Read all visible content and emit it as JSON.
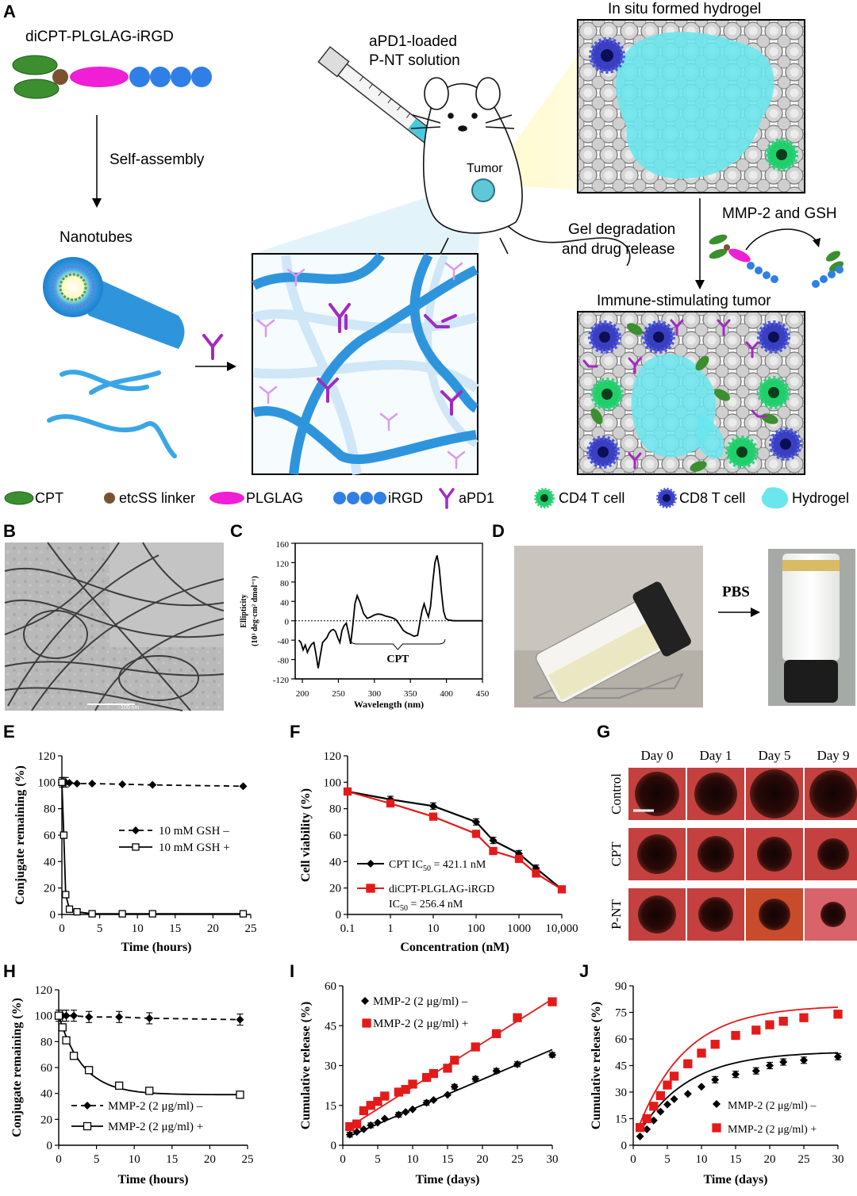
{
  "panel_letters": {
    "A": "A",
    "B": "B",
    "C": "C",
    "D": "D",
    "E": "E",
    "F": "F",
    "G": "G",
    "H": "H",
    "I": "I",
    "J": "J"
  },
  "schematic": {
    "conjugate_title": "diCPT-PLGLAG-iRGD",
    "self_assembly": "Self-assembly",
    "nanotubes": "Nanotubes",
    "syringe_line1": "aPD1-loaded",
    "syringe_line2": "P-NT solution",
    "tumor": "Tumor",
    "hydrogel_title": "In situ formed hydrogel",
    "degradation_line1": "Gel degradation",
    "degradation_line2": "and drug release",
    "enzyme_label": "MMP-2 and GSH",
    "immune_title": "Immune-stimulating tumor"
  },
  "legend": {
    "cpt": "CPT",
    "linker": "etcSS linker",
    "plglag": "PLGLAG",
    "irgd": "iRGD",
    "apd1": "aPD1",
    "cd4": "CD4 T cell",
    "cd8": "CD8 T cell",
    "hydrogel": "Hydrogel"
  },
  "colors": {
    "cpt_green": "#3c8f2f",
    "linker_brown": "#7a5230",
    "plglag_magenta": "#ee1fd4",
    "irgd_blue": "#2f7fe6",
    "nanotube_blue": "#2e95dd",
    "apd1_purple": "#a02bbf",
    "cd4_green": "#1fcf6a",
    "cd8_blue": "#3a3fc2",
    "hydrogel_cyan": "#69e6ee",
    "series_red": "#e41a1a"
  },
  "panel_b": {
    "scale_label": "100 nm"
  },
  "panel_d": {
    "arrow_label": "PBS"
  },
  "panel_g": {
    "columns": [
      "Day 0",
      "Day 1",
      "Day 5",
      "Day 9"
    ],
    "rows": [
      "Control",
      "CPT",
      "P-NT"
    ]
  },
  "chart_data": [
    {
      "id": "C",
      "type": "line",
      "xlabel": "Wavelength (nm)",
      "ylabel_line1": "Ellipticity",
      "ylabel_line2": "(10³ deg·cm² dmol⁻¹)",
      "xlim": [
        190,
        450
      ],
      "ylim": [
        -120,
        160
      ],
      "xticks": [
        200,
        250,
        300,
        350,
        400,
        450
      ],
      "yticks": [
        -120,
        -80,
        -40,
        0,
        40,
        80,
        120,
        160
      ],
      "annotation": "CPT",
      "series": [
        {
          "x": [
            195,
            198,
            201,
            204,
            207,
            210,
            213,
            216,
            219,
            222,
            225,
            228,
            231,
            234,
            237,
            240,
            243,
            246,
            249,
            252,
            255,
            258,
            261,
            264,
            267,
            270,
            273,
            276,
            280,
            285,
            290,
            295,
            300,
            305,
            310,
            315,
            320,
            325,
            330,
            335,
            340,
            345,
            350,
            355,
            360,
            363,
            366,
            369,
            372,
            375,
            378,
            381,
            384,
            387,
            390,
            393,
            396,
            399,
            402,
            410,
            420,
            430,
            440,
            450
          ],
          "y": [
            -40,
            -45,
            -60,
            -50,
            -65,
            -55,
            -48,
            -45,
            -70,
            -98,
            -70,
            -45,
            -40,
            -35,
            -25,
            -20,
            -18,
            -22,
            -35,
            -45,
            -20,
            -10,
            -5,
            -25,
            -48,
            -10,
            35,
            52,
            38,
            15,
            5,
            8,
            12,
            14,
            13,
            10,
            8,
            6,
            2,
            -8,
            -20,
            -25,
            -28,
            -32,
            -30,
            -5,
            20,
            35,
            20,
            8,
            30,
            80,
            120,
            135,
            110,
            60,
            20,
            5,
            2,
            0,
            0,
            0,
            0,
            0
          ]
        }
      ]
    },
    {
      "id": "E",
      "type": "line",
      "xlabel": "Time (hours)",
      "ylabel": "Conjugate remaining (%)",
      "xlim": [
        0,
        25
      ],
      "ylim": [
        0,
        120
      ],
      "xticks": [
        0,
        5,
        10,
        15,
        20,
        25
      ],
      "yticks": [
        0,
        20,
        40,
        60,
        80,
        100,
        120
      ],
      "series": [
        {
          "name": "10 mM GSH –",
          "x": [
            0,
            0.25,
            0.5,
            1,
            2,
            4,
            8,
            12,
            24
          ],
          "y": [
            100,
            100,
            100,
            99.5,
            99,
            99,
            98.5,
            98,
            97
          ]
        },
        {
          "name": "10 mM GSH +",
          "x": [
            0,
            0.25,
            0.5,
            1,
            2,
            4,
            8,
            12,
            24
          ],
          "y": [
            100,
            60,
            15,
            4,
            2,
            0.5,
            0.5,
            0.5,
            0.5
          ]
        }
      ]
    },
    {
      "id": "F",
      "type": "line",
      "xlabel": "Concentration (nM)",
      "ylabel": "Cell viability (%)",
      "xscale": "log",
      "xlim": [
        0.1,
        10000
      ],
      "ylim": [
        0,
        120
      ],
      "xtick_labels": [
        "0.1",
        "1",
        "10",
        "100",
        "1000",
        "10,000"
      ],
      "yticks": [
        0,
        20,
        40,
        60,
        80,
        100,
        120
      ],
      "series": [
        {
          "name": "CPT IC",
          "name_sub": "50",
          "name_suffix": " = 421.1 nM",
          "x": [
            0.1,
            1,
            10,
            100,
            250,
            1000,
            2500,
            10000
          ],
          "y": [
            93,
            87,
            82,
            70,
            56,
            46,
            35,
            19
          ]
        },
        {
          "name": "diCPT-PLGLAG-iRGD",
          "name_line2": "IC",
          "name_sub": "50",
          "name_suffix": " = 256.4 nM",
          "x": [
            0.1,
            1,
            10,
            100,
            250,
            1000,
            2500,
            10000
          ],
          "y": [
            93,
            84,
            74,
            61,
            48,
            42,
            31,
            19
          ]
        }
      ]
    },
    {
      "id": "H",
      "type": "line",
      "xlabel": "Time (hours)",
      "ylabel": "Conjugate remaining (%)",
      "xlim": [
        0,
        25
      ],
      "ylim": [
        0,
        120
      ],
      "xticks": [
        0,
        5,
        10,
        15,
        20,
        25
      ],
      "yticks": [
        0,
        20,
        40,
        60,
        80,
        100,
        120
      ],
      "series": [
        {
          "name": "MMP-2 (2 μg/ml) –",
          "x": [
            0,
            0.5,
            1,
            2,
            4,
            8,
            12,
            24
          ],
          "y": [
            100,
            100,
            100,
            100,
            99,
            99,
            98,
            97
          ]
        },
        {
          "name": "MMP-2 (2 μg/ml) +",
          "x": [
            0,
            0.5,
            1,
            2,
            4,
            8,
            12,
            24
          ],
          "y": [
            100,
            91,
            81,
            69,
            58,
            46,
            42,
            39
          ]
        }
      ]
    },
    {
      "id": "I",
      "type": "scatter",
      "xlabel": "Time (days)",
      "ylabel": "Cumulative release (%)",
      "xlim": [
        0,
        30
      ],
      "ylim": [
        0,
        60
      ],
      "xticks": [
        0,
        5,
        10,
        15,
        20,
        25,
        30
      ],
      "yticks": [
        0,
        15,
        30,
        45,
        60
      ],
      "series": [
        {
          "name": "MMP-2 (2 μg/ml) –",
          "x": [
            1,
            2,
            3,
            4,
            5,
            6,
            8,
            9,
            10,
            12,
            13,
            15,
            16,
            19,
            22,
            25,
            30
          ],
          "y": [
            4,
            5,
            6,
            7.5,
            8.5,
            10,
            11.5,
            12.5,
            13.5,
            16,
            17,
            19,
            22,
            25,
            28,
            30.5,
            34
          ]
        },
        {
          "name": "MMP-2 (2 μg/ml) +",
          "x": [
            1,
            2,
            3,
            4,
            5,
            6,
            8,
            9,
            10,
            12,
            13,
            15,
            16,
            19,
            22,
            25,
            30
          ],
          "y": [
            7,
            8,
            13,
            15,
            16.5,
            18.5,
            20,
            21,
            23,
            25.5,
            27,
            29,
            32,
            37,
            42,
            48,
            54
          ]
        }
      ]
    },
    {
      "id": "J",
      "type": "scatter",
      "xlabel": "Time (days)",
      "ylabel": "Cumulative release (%)",
      "xlim": [
        0,
        30
      ],
      "ylim": [
        0,
        90
      ],
      "xticks": [
        0,
        5,
        10,
        15,
        20,
        25,
        30
      ],
      "yticks": [
        0,
        15,
        30,
        45,
        60,
        75,
        90
      ],
      "series": [
        {
          "name": "MMP-2 (2 μg/ml) –",
          "x": [
            1,
            2,
            3,
            4,
            5,
            6,
            8,
            10,
            12,
            15,
            18,
            20,
            22,
            25,
            30
          ],
          "y": [
            5,
            9,
            14,
            19,
            23,
            26,
            29,
            33,
            37,
            40,
            42,
            45,
            47,
            48,
            50
          ]
        },
        {
          "name": "MMP-2 (2 μg/ml) +",
          "x": [
            1,
            2,
            3,
            4,
            5,
            6,
            8,
            10,
            12,
            15,
            18,
            20,
            22,
            25,
            30
          ],
          "y": [
            10,
            15,
            22,
            28,
            34,
            39,
            46,
            52,
            57,
            62,
            65,
            68,
            70,
            72,
            74
          ]
        }
      ]
    }
  ]
}
